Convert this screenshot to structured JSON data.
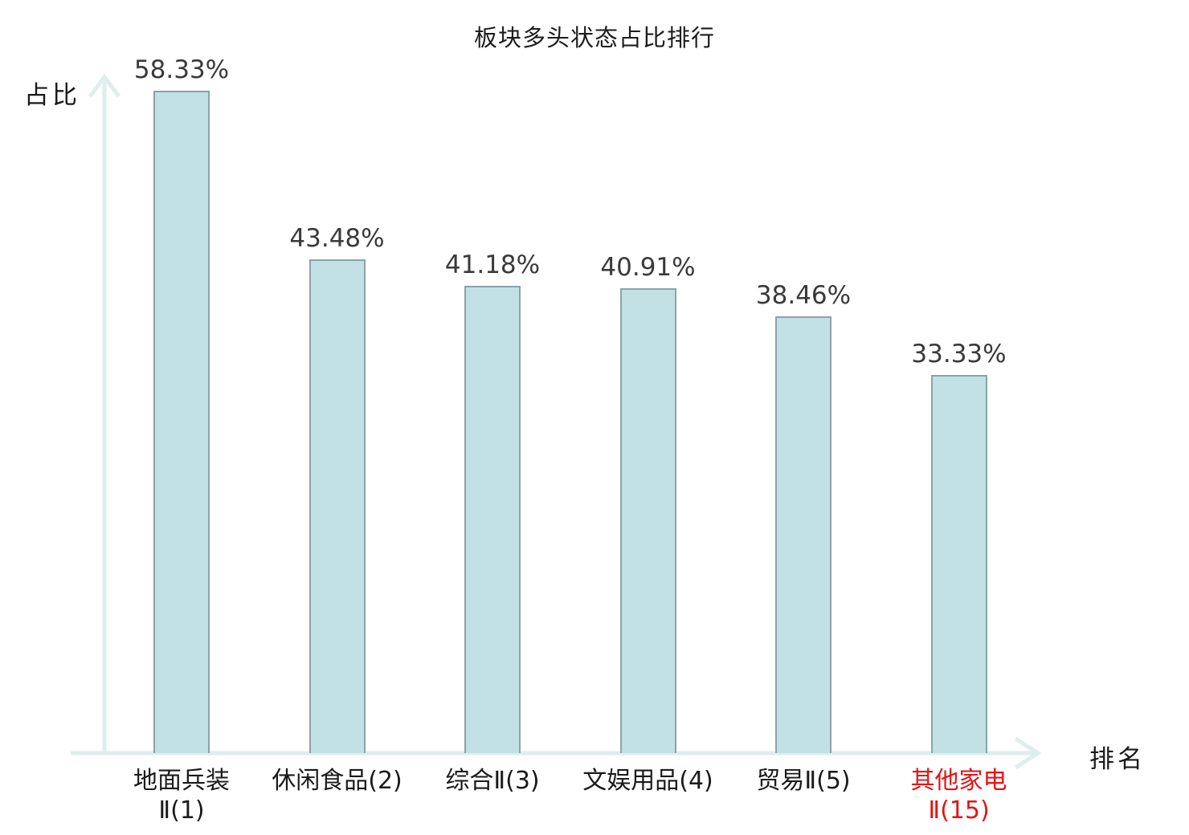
{
  "title": "板块多头状态占比排行",
  "y_axis_label": "占比",
  "x_axis_label": "排名",
  "colors": {
    "bar_fill": "#c2e1e5",
    "bar_border": "#8ba3a7",
    "axis": "#ddeeec",
    "value_text": "#3a3a3a",
    "label_text": "#1a1a1a",
    "highlight_text": "#e51414",
    "background": "#ffffff"
  },
  "chart_data": {
    "type": "bar",
    "title": "板块多头状态占比排行",
    "xlabel": "排名",
    "ylabel": "占比",
    "categories": [
      "地面兵装Ⅱ(1)",
      "休闲食品(2)",
      "综合Ⅱ(3)",
      "文娱用品(4)",
      "贸易Ⅱ(5)",
      "其他家电Ⅱ(15)"
    ],
    "category_lines": [
      [
        "地面兵装",
        "Ⅱ(1)"
      ],
      [
        "休闲食品(2)"
      ],
      [
        "综合Ⅱ(3)"
      ],
      [
        "文娱用品(4)"
      ],
      [
        "贸易Ⅱ(5)"
      ],
      [
        "其他家电",
        "Ⅱ(15)"
      ]
    ],
    "values": [
      58.33,
      43.48,
      41.18,
      40.91,
      38.46,
      33.33
    ],
    "value_labels": [
      "58.33%",
      "43.48%",
      "41.18%",
      "40.91%",
      "38.46%",
      "33.33%"
    ],
    "highlight_index": 5,
    "ylim": [
      0,
      60
    ],
    "grid": false,
    "legend": null,
    "y_ticks": [],
    "x_ticks": []
  }
}
